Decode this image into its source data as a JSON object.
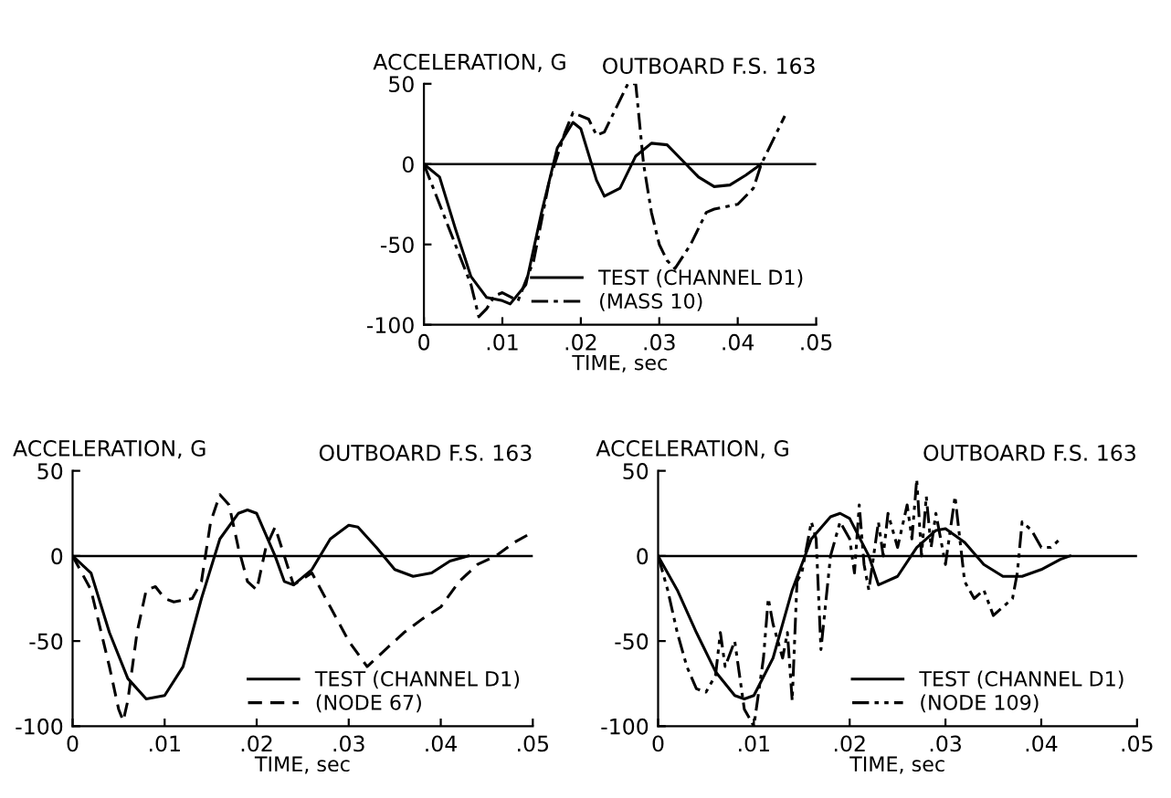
{
  "chart_data": [
    {
      "type": "line",
      "title": "OUTBOARD F.S. 163",
      "ylabel": "ACCELERATION, G",
      "xlabel": "TIME, sec",
      "xlim": [
        0,
        0.05
      ],
      "ylim": [
        -100,
        50
      ],
      "xticks": [
        0,
        {
          "value": 0.01,
          "label": ".01"
        },
        {
          "value": 0.02,
          "label": ".02"
        },
        {
          "value": 0.03,
          "label": ".03"
        },
        {
          "value": 0.04,
          "label": ".04"
        },
        {
          "value": 0.05,
          "label": ".05"
        }
      ],
      "yticks": [
        -100,
        -50,
        0,
        50
      ],
      "grid": false,
      "legend": "bottom right",
      "marker": "none",
      "ref_lines": [
        {
          "axis": "y",
          "value": 0,
          "color": "#000000"
        }
      ],
      "series": [
        {
          "name": "TEST (CHANNEL D1)",
          "color": "#000000",
          "line_style": "solid",
          "x": [
            0,
            0.002,
            0.004,
            0.006,
            0.008,
            0.01,
            0.011,
            0.013,
            0.015,
            0.017,
            0.019,
            0.02,
            0.022,
            0.023,
            0.025,
            0.027,
            0.029,
            0.031,
            0.033,
            0.035,
            0.037,
            0.039,
            0.041,
            0.043
          ],
          "values": [
            0,
            -8,
            -40,
            -70,
            -83,
            -85,
            -87,
            -75,
            -30,
            10,
            26,
            22,
            -10,
            -20,
            -15,
            5,
            13,
            12,
            2,
            -8,
            -14,
            -13,
            -7,
            0
          ]
        },
        {
          "name": "(MASS 10)",
          "color": "#000000",
          "line_style": "dashdot",
          "x": [
            0,
            0.002,
            0.004,
            0.006,
            0.007,
            0.008,
            0.009,
            0.01,
            0.012,
            0.014,
            0.016,
            0.018,
            0.019,
            0.021,
            0.022,
            0.023,
            0.025,
            0.026,
            0.027,
            0.028,
            0.029,
            0.03,
            0.031,
            0.032,
            0.034,
            0.036,
            0.037,
            0.04,
            0.042,
            0.043,
            0.045,
            0.046
          ],
          "values": [
            0,
            -25,
            -50,
            -75,
            -95,
            -90,
            -82,
            -80,
            -85,
            -60,
            -10,
            20,
            32,
            28,
            18,
            20,
            40,
            50,
            50,
            0,
            -30,
            -50,
            -60,
            -65,
            -50,
            -30,
            -28,
            -25,
            -15,
            0,
            20,
            30
          ]
        }
      ]
    },
    {
      "type": "line",
      "title": "OUTBOARD F.S. 163",
      "ylabel": "ACCELERATION, G",
      "xlabel": "TIME, sec",
      "xlim": [
        0,
        0.05
      ],
      "ylim": [
        -100,
        50
      ],
      "xticks": [
        0,
        {
          "value": 0.01,
          "label": ".01"
        },
        {
          "value": 0.02,
          "label": ".02"
        },
        {
          "value": 0.03,
          "label": ".03"
        },
        {
          "value": 0.04,
          "label": ".04"
        },
        {
          "value": 0.05,
          "label": ".05"
        }
      ],
      "yticks": [
        -100,
        -50,
        0,
        50
      ],
      "grid": false,
      "legend": "bottom right",
      "marker": "none",
      "ref_lines": [
        {
          "axis": "y",
          "value": 0,
          "color": "#000000"
        }
      ],
      "series": [
        {
          "name": "TEST (CHANNEL D1)",
          "color": "#000000",
          "line_style": "solid",
          "x": [
            0,
            0.002,
            0.004,
            0.006,
            0.008,
            0.01,
            0.012,
            0.014,
            0.016,
            0.018,
            0.019,
            0.02,
            0.022,
            0.023,
            0.024,
            0.026,
            0.028,
            0.03,
            0.031,
            0.033,
            0.035,
            0.037,
            0.039,
            0.041,
            0.043
          ],
          "values": [
            0,
            -10,
            -45,
            -72,
            -84,
            -82,
            -65,
            -25,
            10,
            25,
            27,
            25,
            0,
            -15,
            -17,
            -8,
            10,
            18,
            17,
            5,
            -8,
            -12,
            -10,
            -3,
            0
          ]
        },
        {
          "name": "(NODE 67)",
          "color": "#000000",
          "line_style": "dashed",
          "x": [
            0,
            0.002,
            0.004,
            0.005,
            0.0055,
            0.006,
            0.007,
            0.008,
            0.009,
            0.01,
            0.011,
            0.013,
            0.014,
            0.015,
            0.016,
            0.017,
            0.018,
            0.019,
            0.02,
            0.021,
            0.022,
            0.023,
            0.024,
            0.026,
            0.028,
            0.03,
            0.032,
            0.034,
            0.036,
            0.038,
            0.04,
            0.042,
            0.044,
            0.046,
            0.048,
            0.05
          ],
          "values": [
            0,
            -20,
            -65,
            -90,
            -97,
            -85,
            -45,
            -20,
            -18,
            -25,
            -27,
            -25,
            -15,
            20,
            36,
            30,
            5,
            -15,
            -20,
            5,
            17,
            0,
            -17,
            -10,
            -30,
            -50,
            -65,
            -55,
            -45,
            -37,
            -30,
            -15,
            -5,
            0,
            8,
            14
          ]
        }
      ]
    },
    {
      "type": "line",
      "title": "OUTBOARD F.S. 163",
      "ylabel": "ACCELERATION, G",
      "xlabel": "TIME, sec",
      "xlim": [
        0,
        0.05
      ],
      "ylim": [
        -100,
        50
      ],
      "xticks": [
        0,
        {
          "value": 0.01,
          "label": ".01"
        },
        {
          "value": 0.02,
          "label": ".02"
        },
        {
          "value": 0.03,
          "label": ".03"
        },
        {
          "value": 0.04,
          "label": ".04"
        },
        {
          "value": 0.05,
          "label": ".05"
        }
      ],
      "yticks": [
        -100,
        -50,
        0,
        50
      ],
      "grid": false,
      "legend": "bottom right",
      "marker": "none",
      "ref_lines": [
        {
          "axis": "y",
          "value": 0,
          "color": "#000000"
        }
      ],
      "series": [
        {
          "name": "TEST (CHANNEL D1)",
          "color": "#000000",
          "line_style": "solid",
          "x": [
            0,
            0.002,
            0.004,
            0.006,
            0.008,
            0.009,
            0.01,
            0.012,
            0.014,
            0.016,
            0.018,
            0.019,
            0.02,
            0.022,
            0.023,
            0.025,
            0.027,
            0.029,
            0.03,
            0.032,
            0.034,
            0.036,
            0.038,
            0.04,
            0.042,
            0.043
          ],
          "values": [
            0,
            -20,
            -45,
            -68,
            -82,
            -84,
            -82,
            -60,
            -20,
            10,
            23,
            25,
            22,
            0,
            -17,
            -12,
            5,
            15,
            16,
            8,
            -5,
            -12,
            -12,
            -8,
            -2,
            0
          ]
        },
        {
          "name": "(NODE 109)",
          "color": "#000000",
          "line_style": "dashdotdot",
          "x": [
            0,
            0.001,
            0.002,
            0.003,
            0.004,
            0.005,
            0.006,
            0.0065,
            0.007,
            0.008,
            0.009,
            0.01,
            0.011,
            0.0115,
            0.012,
            0.013,
            0.0135,
            0.014,
            0.0145,
            0.015,
            0.016,
            0.0165,
            0.017,
            0.018,
            0.019,
            0.02,
            0.0205,
            0.021,
            0.0215,
            0.022,
            0.023,
            0.0235,
            0.024,
            0.025,
            0.026,
            0.0265,
            0.027,
            0.0275,
            0.028,
            0.0285,
            0.029,
            0.03,
            0.031,
            0.0315,
            0.032,
            0.033,
            0.034,
            0.035,
            0.036,
            0.037,
            0.0375,
            0.038,
            0.039,
            0.04,
            0.041,
            0.042
          ],
          "values": [
            0,
            -20,
            -45,
            -65,
            -78,
            -80,
            -70,
            -45,
            -65,
            -50,
            -90,
            -100,
            -60,
            -25,
            -40,
            -60,
            -45,
            -85,
            -15,
            -10,
            20,
            10,
            -55,
            0,
            20,
            10,
            -10,
            30,
            -5,
            -20,
            20,
            0,
            25,
            5,
            30,
            10,
            45,
            0,
            35,
            5,
            25,
            -5,
            35,
            10,
            -15,
            -25,
            -20,
            -35,
            -30,
            -25,
            -10,
            20,
            15,
            5,
            5,
            10
          ]
        }
      ]
    }
  ]
}
